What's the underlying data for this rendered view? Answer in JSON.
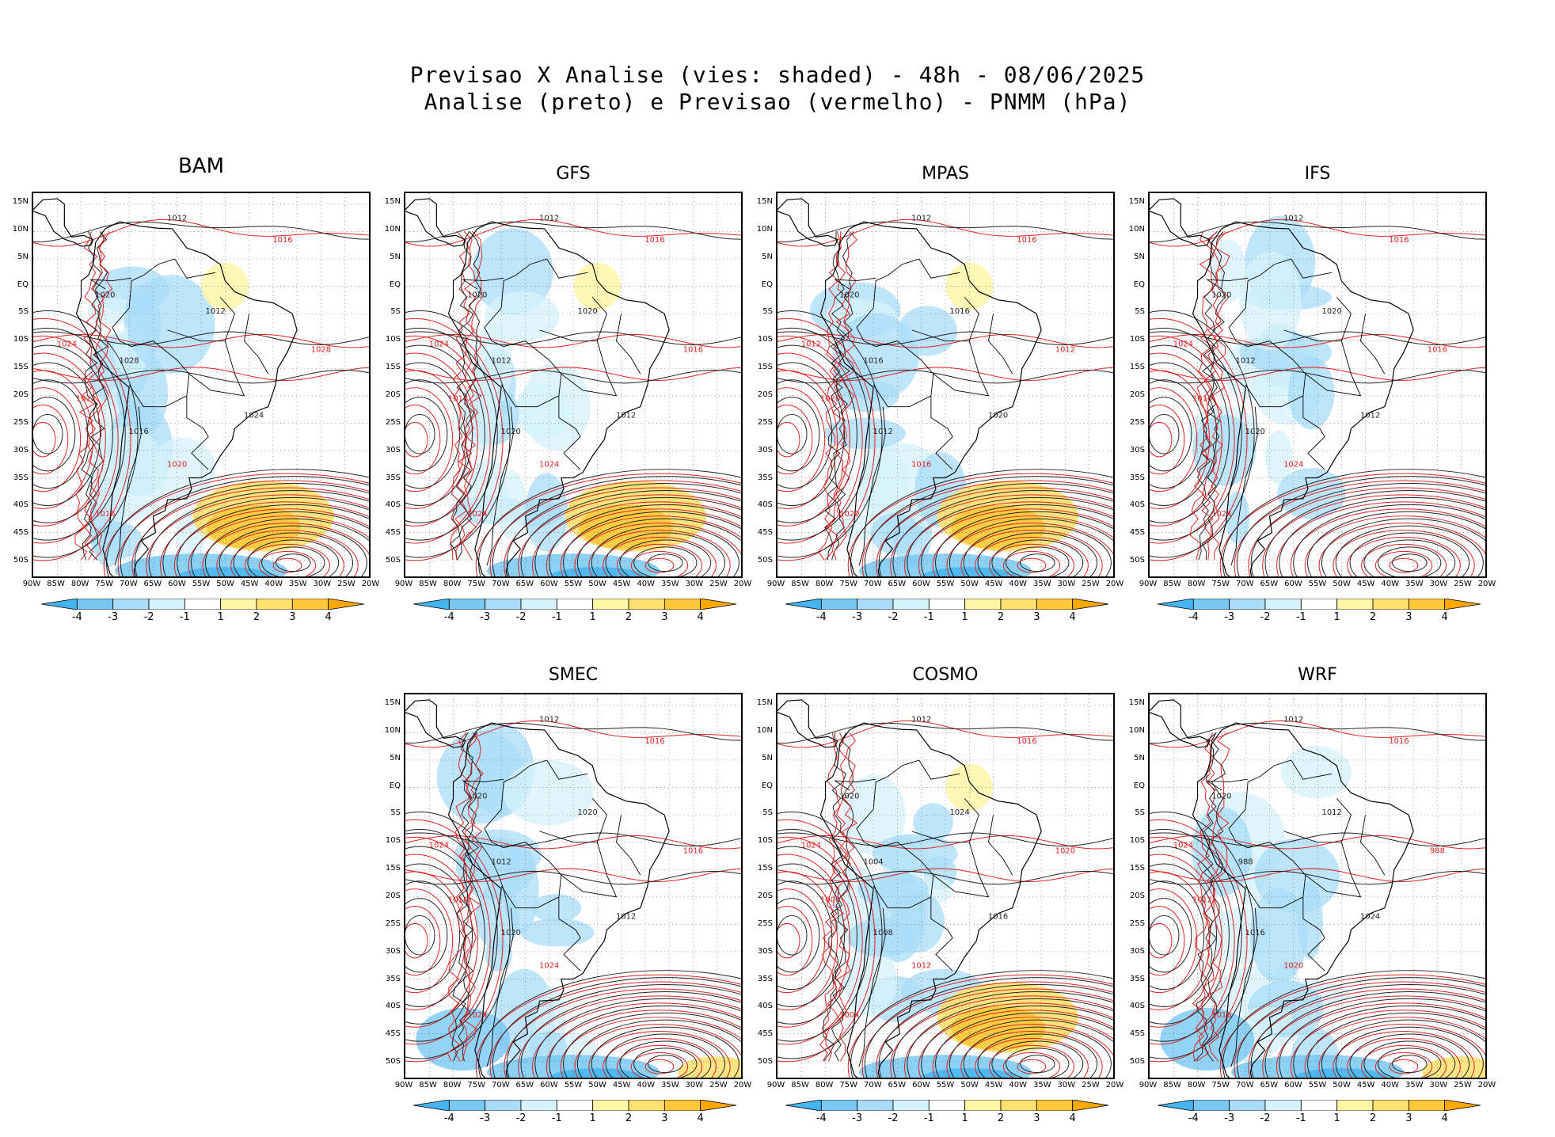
{
  "title": {
    "line1": "Previsao X Analise (vies: shaded) - 48h - 08/06/2025",
    "line2": "Analise (preto) e Previsao (vermelho) - PNMM (hPa)"
  },
  "chart_data": {
    "type": "map-panels",
    "variable": "PNMM (hPa)",
    "shaded": "vies (forecast bias)",
    "lead_time": "48h",
    "date": "08/06/2025",
    "lat_ticks": [
      "15N",
      "10N",
      "5N",
      "EQ",
      "5S",
      "10S",
      "15S",
      "20S",
      "25S",
      "30S",
      "35S",
      "40S",
      "45S",
      "50S"
    ],
    "lon_ticks": [
      "90W",
      "85W",
      "80W",
      "75W",
      "70W",
      "65W",
      "60W",
      "55W",
      "50W",
      "45W",
      "40W",
      "35W",
      "30W",
      "25W",
      "20W"
    ],
    "colorbar": {
      "labels": [
        "-4",
        "-3",
        "-2",
        "-1",
        "1",
        "2",
        "3",
        "4"
      ],
      "colors": [
        "#46b4ee",
        "#78c8f2",
        "#aadcf8",
        "#d6f2fa",
        "#ffffff",
        "#fff6a8",
        "#ffe070",
        "#ffc83a",
        "#ffa800"
      ]
    },
    "colors": {
      "analise": "#000000",
      "previsao": "#e02020",
      "grid": "#555555"
    },
    "panels": [
      {
        "name": "BAM",
        "contour_labels": [
          "1012",
          "1016",
          "1020",
          "1024",
          "1028"
        ],
        "bias_hint": "mixed"
      },
      {
        "name": "GFS",
        "contour_labels": [
          "1012",
          "1016",
          "1020",
          "1024"
        ],
        "bias_hint": "positive-south"
      },
      {
        "name": "MPAS",
        "contour_labels": [
          "1012",
          "1016",
          "1020"
        ],
        "bias_hint": "positive-south"
      },
      {
        "name": "IFS",
        "contour_labels": [
          "1012",
          "1016",
          "1020",
          "1024"
        ],
        "bias_hint": "slight"
      },
      {
        "name": "SMEC",
        "contour_labels": [
          "1012",
          "1016",
          "1020",
          "1024"
        ],
        "bias_hint": "negative-south"
      },
      {
        "name": "COSMO",
        "contour_labels": [
          "1012",
          "1016",
          "1020",
          "1024",
          "1004",
          "1000",
          "1008"
        ],
        "bias_hint": "positive-south"
      },
      {
        "name": "WRF",
        "contour_labels": [
          "1012",
          "1016",
          "1020",
          "1024",
          "988"
        ],
        "bias_hint": "negative-south"
      }
    ]
  }
}
